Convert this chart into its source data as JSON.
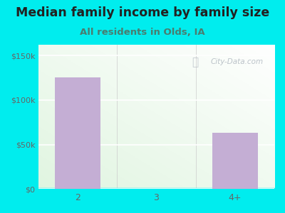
{
  "title": "Median family income by family size",
  "subtitle": "All residents in Olds, IA",
  "categories": [
    "2",
    "3",
    "4+"
  ],
  "values": [
    125000,
    0,
    63000
  ],
  "bar_color": "#c4aed4",
  "outer_bg": "#00edee",
  "yticks": [
    0,
    50000,
    100000,
    150000
  ],
  "ytick_labels": [
    "$0",
    "$50k",
    "$100k",
    "$150k"
  ],
  "ylim": [
    0,
    162000
  ],
  "title_fontsize": 12.5,
  "subtitle_fontsize": 9.5,
  "title_color": "#222222",
  "subtitle_color": "#4a7c6f",
  "tick_color": "#666666",
  "watermark": "City-Data.com"
}
